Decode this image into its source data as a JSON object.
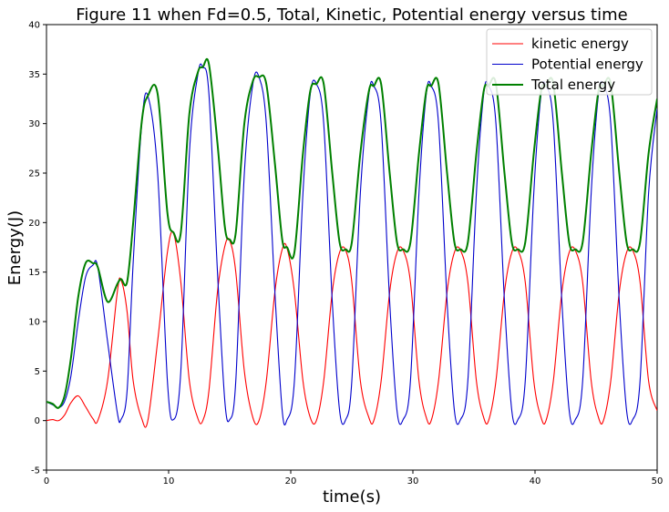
{
  "chart_data": {
    "type": "line",
    "title": "Figure 11 when Fd=0.5, Total, Kinetic, Potential energy versus time",
    "xlabel": "time(s)",
    "ylabel": "Energy(J)",
    "xlim": [
      0,
      50
    ],
    "ylim": [
      -5,
      40
    ],
    "xticks": [
      0,
      10,
      20,
      30,
      40,
      50
    ],
    "yticks": [
      -5,
      0,
      5,
      10,
      15,
      20,
      25,
      30,
      35,
      40
    ],
    "grid": false,
    "legend_position": "top-right",
    "colors": {
      "kinetic": "#ff0000",
      "potential": "#0000cc",
      "total": "#008000"
    },
    "series": [
      {
        "name": "kinetic energy",
        "color": "#ff0000",
        "x": [
          0,
          0.5,
          1.0,
          1.5,
          2.0,
          2.6,
          3.2,
          3.8,
          4.2,
          5.0,
          5.8,
          6.1,
          6.6,
          7.1,
          7.8,
          8.3,
          9.1,
          9.9,
          10.4,
          11.0,
          11.7,
          12.4,
          12.8,
          13.3,
          14.0,
          14.6,
          15.0,
          15.5,
          16.2,
          16.9,
          17.4,
          18.0,
          18.7,
          19.3,
          19.7,
          20.3,
          21.0,
          21.6,
          22.1,
          22.7,
          23.4,
          24.0,
          24.5,
          25.0,
          25.7,
          26.4,
          26.8,
          27.4,
          28.1,
          28.7,
          29.2,
          29.8,
          30.5,
          31.1,
          31.5,
          32.1,
          32.8,
          33.4,
          33.9,
          34.5,
          35.2,
          35.8,
          36.2,
          36.8,
          37.5,
          38.1,
          38.6,
          39.2,
          39.9,
          40.5,
          40.9,
          41.5,
          42.2,
          42.8,
          43.3,
          43.9,
          44.6,
          45.2,
          45.6,
          46.2,
          46.9,
          47.5,
          48.0,
          48.6,
          49.3,
          50.0
        ],
        "values": [
          0,
          0.1,
          0,
          0.6,
          1.8,
          2.5,
          1.4,
          0.2,
          0,
          4.0,
          13.0,
          14.2,
          11.0,
          4.0,
          0.2,
          0,
          8.0,
          17.0,
          18.9,
          14.0,
          4.0,
          0.2,
          0,
          3.0,
          13.0,
          17.6,
          18.2,
          15.0,
          5.0,
          0.3,
          0,
          4.0,
          13.0,
          17.3,
          17.4,
          13.0,
          4.0,
          0.3,
          0,
          4.0,
          13.0,
          17.0,
          17.2,
          14.0,
          4.0,
          0.3,
          0,
          4.0,
          13.0,
          17.0,
          17.2,
          14.0,
          4.0,
          0.3,
          0,
          4.0,
          13.0,
          17.0,
          17.2,
          14.0,
          4.0,
          0.3,
          0,
          4.0,
          13.0,
          17.0,
          17.2,
          14.0,
          4.0,
          0.3,
          0,
          4.0,
          13.0,
          17.0,
          17.2,
          14.0,
          4.0,
          0.3,
          0,
          4.0,
          13.0,
          17.0,
          17.2,
          14.0,
          4.0,
          1.0
        ]
      },
      {
        "name": "Potential energy",
        "color": "#0000cc",
        "x": [
          0,
          0.5,
          1.0,
          1.5,
          2.0,
          2.6,
          3.2,
          3.8,
          4.2,
          5.0,
          5.8,
          6.1,
          6.6,
          7.1,
          7.8,
          8.3,
          9.1,
          9.9,
          10.4,
          11.0,
          11.7,
          12.4,
          12.8,
          13.3,
          14.0,
          14.6,
          15.0,
          15.5,
          16.2,
          16.9,
          17.4,
          18.0,
          18.7,
          19.3,
          19.7,
          20.3,
          21.0,
          21.6,
          22.1,
          22.7,
          23.4,
          24.0,
          24.5,
          25.0,
          25.7,
          26.4,
          26.8,
          27.4,
          28.1,
          28.7,
          29.2,
          29.8,
          30.5,
          31.1,
          31.5,
          32.1,
          32.8,
          33.4,
          33.9,
          34.5,
          35.2,
          35.8,
          36.2,
          36.8,
          37.5,
          38.1,
          38.6,
          39.2,
          39.9,
          40.5,
          40.9,
          41.5,
          42.2,
          42.8,
          43.3,
          43.9,
          44.6,
          45.2,
          45.6,
          46.2,
          46.9,
          47.5,
          48.0,
          48.6,
          49.3,
          50.0
        ],
        "values": [
          1.9,
          1.6,
          1.3,
          2.0,
          4.5,
          10.0,
          14.5,
          15.7,
          15.5,
          8.0,
          0.8,
          0.1,
          3.0,
          16.0,
          30.0,
          32.8,
          25.0,
          4.0,
          0.1,
          5.0,
          27.0,
          35.0,
          35.7,
          33.0,
          15.0,
          2.0,
          0.1,
          4.0,
          25.0,
          34.0,
          34.7,
          30.0,
          13.0,
          1.0,
          0.1,
          4.0,
          23.0,
          33.0,
          34.0,
          30.0,
          12.0,
          1.0,
          0.1,
          4.0,
          23.0,
          33.0,
          33.8,
          30.0,
          12.0,
          1.0,
          0.1,
          4.0,
          23.0,
          33.0,
          33.8,
          30.0,
          12.0,
          1.0,
          0.1,
          4.0,
          23.0,
          33.0,
          33.8,
          30.0,
          12.0,
          1.0,
          0.1,
          4.0,
          23.0,
          33.0,
          33.8,
          30.0,
          12.0,
          1.0,
          0.1,
          4.0,
          23.0,
          33.0,
          33.8,
          30.0,
          12.0,
          1.0,
          0.1,
          4.0,
          23.0,
          31.5
        ]
      },
      {
        "name": "Total energy",
        "color": "#008000",
        "x": [
          0,
          0.5,
          1.0,
          1.5,
          2.0,
          2.6,
          3.2,
          3.8,
          4.2,
          5.0,
          5.8,
          6.1,
          6.6,
          7.1,
          7.8,
          8.3,
          9.1,
          9.9,
          10.4,
          11.0,
          11.7,
          12.4,
          12.8,
          13.3,
          14.0,
          14.6,
          15.0,
          15.5,
          16.2,
          16.9,
          17.4,
          18.0,
          18.7,
          19.3,
          19.7,
          20.3,
          21.0,
          21.6,
          22.1,
          22.7,
          23.4,
          24.0,
          24.5,
          25.0,
          25.7,
          26.4,
          26.8,
          27.4,
          28.1,
          28.7,
          29.2,
          29.8,
          30.5,
          31.1,
          31.5,
          32.1,
          32.8,
          33.4,
          33.9,
          34.5,
          35.2,
          35.8,
          36.2,
          36.8,
          37.5,
          38.1,
          38.6,
          39.2,
          39.9,
          40.5,
          40.9,
          41.5,
          42.2,
          42.8,
          43.3,
          43.9,
          44.6,
          45.2,
          45.6,
          46.2,
          46.9,
          47.5,
          48.0,
          48.6,
          49.3,
          50.0
        ],
        "values": [
          1.9,
          1.7,
          1.3,
          2.6,
          6.3,
          12.5,
          15.9,
          15.9,
          15.5,
          12.0,
          13.8,
          14.3,
          14.0,
          20.0,
          30.2,
          32.8,
          33.0,
          21.0,
          19.0,
          19.0,
          31.0,
          35.2,
          35.7,
          36.0,
          28.0,
          19.6,
          18.3,
          19.0,
          30.0,
          34.3,
          34.7,
          34.0,
          26.0,
          18.3,
          17.5,
          17.0,
          27.0,
          33.3,
          34.0,
          34.0,
          25.0,
          18.0,
          17.3,
          18.0,
          27.0,
          33.3,
          33.8,
          34.0,
          25.0,
          18.0,
          17.3,
          18.0,
          27.0,
          33.3,
          33.8,
          34.0,
          25.0,
          18.0,
          17.3,
          18.0,
          27.0,
          33.3,
          33.8,
          34.0,
          25.0,
          18.0,
          17.3,
          18.0,
          27.0,
          33.3,
          33.8,
          34.0,
          25.0,
          18.0,
          17.3,
          18.0,
          27.0,
          33.3,
          33.8,
          34.0,
          25.0,
          18.0,
          17.3,
          18.0,
          27.0,
          32.5
        ]
      }
    ]
  }
}
